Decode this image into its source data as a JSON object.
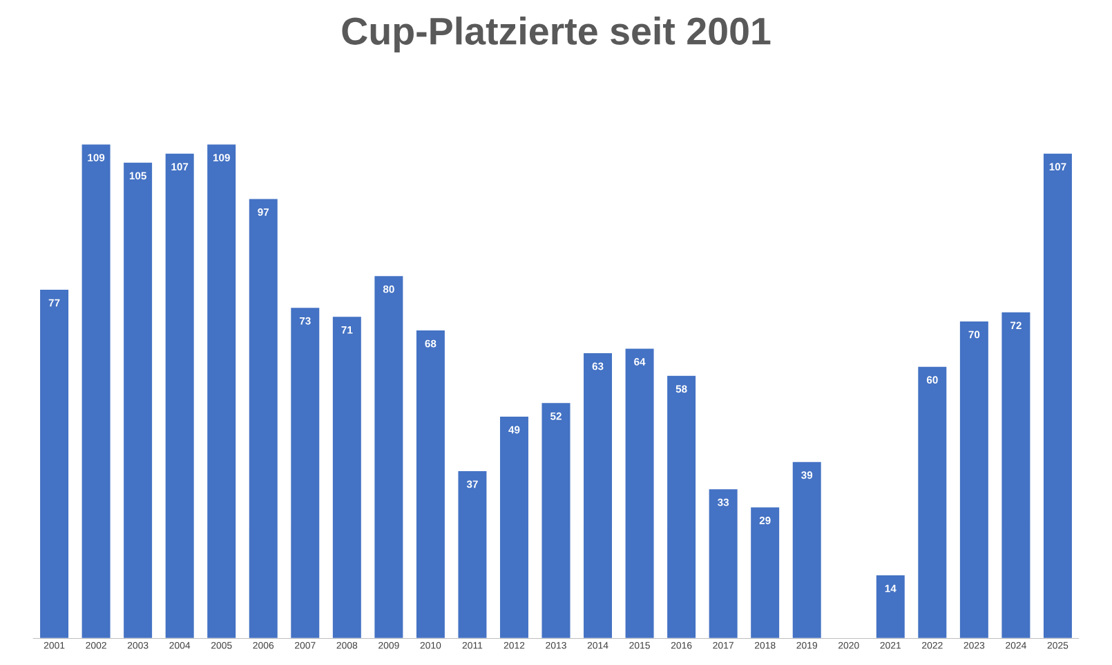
{
  "chart_data": {
    "type": "bar",
    "title": "Cup-Platzierte seit 2001",
    "categories": [
      "2001",
      "2002",
      "2003",
      "2004",
      "2005",
      "2006",
      "2007",
      "2008",
      "2009",
      "2010",
      "2011",
      "2012",
      "2013",
      "2014",
      "2015",
      "2016",
      "2017",
      "2018",
      "2019",
      "2020",
      "2021",
      "2022",
      "2023",
      "2024",
      "2025"
    ],
    "values": [
      77,
      109,
      105,
      107,
      109,
      97,
      73,
      71,
      80,
      68,
      37,
      49,
      52,
      63,
      64,
      58,
      33,
      29,
      39,
      null,
      14,
      60,
      70,
      72,
      107
    ],
    "color": "#4472c4",
    "data_labels": true,
    "tick_labels": "x",
    "grid": false,
    "legend": false
  }
}
